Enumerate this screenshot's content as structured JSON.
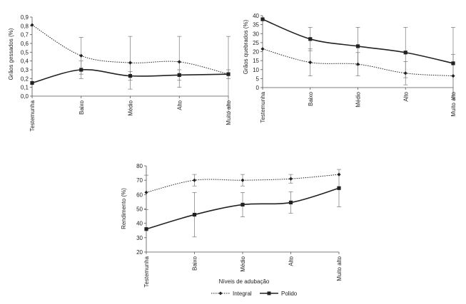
{
  "chart_data": [
    {
      "type": "line",
      "title": "",
      "xlabel": "",
      "ylabel": "Grãos gessados (%)",
      "categories": [
        "Testemunha",
        "Baixo",
        "Médio",
        "Alto",
        "Muito alto"
      ],
      "ylim": [
        0,
        0.9
      ],
      "yticks": [
        0,
        0.1,
        0.2,
        0.3,
        0.4,
        0.5,
        0.6,
        0.7,
        0.8,
        0.9
      ],
      "ytick_labels": [
        "0,0",
        "0,1",
        "0,2",
        "0,3",
        "0,4",
        "0,5",
        "0,6",
        "0,7",
        "0,8",
        "0,9"
      ],
      "grid": false,
      "series": [
        {
          "name": "Integral",
          "style": "dotted",
          "marker": "diamond",
          "color": "#222222",
          "values": [
            0.81,
            0.46,
            0.38,
            0.39,
            0.25
          ],
          "error": [
            0,
            0.21,
            0.3,
            0.29,
            0.43
          ]
        },
        {
          "name": "Polido",
          "style": "solid",
          "marker": "square",
          "color": "#222222",
          "values": [
            0.15,
            0.3,
            0.23,
            0.24,
            0.25
          ],
          "error": [
            0,
            0.1,
            0.05,
            0.06,
            0.05
          ]
        }
      ]
    },
    {
      "type": "line",
      "title": "",
      "xlabel": "",
      "ylabel": "Grãos quebrados (%)",
      "categories": [
        "Testemunha",
        "Baixo",
        "Médio",
        "Alto",
        "Muito alto"
      ],
      "ylim": [
        0,
        40
      ],
      "yticks": [
        0,
        5,
        10,
        15,
        20,
        25,
        30,
        35,
        40
      ],
      "ytick_labels": [
        "0",
        "5",
        "10",
        "15",
        "20",
        "25",
        "30",
        "35",
        "40"
      ],
      "grid": false,
      "series": [
        {
          "name": "Integral",
          "style": "dotted",
          "marker": "diamond",
          "color": "#222222",
          "values": [
            21.5,
            14,
            13,
            8,
            6.5
          ],
          "error": [
            0,
            7.5,
            6.5,
            6.5,
            12
          ]
        },
        {
          "name": "Polido",
          "style": "solid",
          "marker": "square",
          "color": "#222222",
          "values": [
            38,
            27,
            23,
            19.5,
            13.5
          ],
          "error": [
            0,
            6.5,
            10.5,
            14,
            20
          ]
        }
      ]
    },
    {
      "type": "line",
      "title": "",
      "xlabel": "Níveis de adubação",
      "ylabel": "Rendimento (%)",
      "categories": [
        "Testemunha",
        "Baixo",
        "Médio",
        "Alto",
        "Muito alto"
      ],
      "ylim": [
        20,
        80
      ],
      "yticks": [
        20,
        30,
        40,
        50,
        60,
        70,
        80
      ],
      "ytick_labels": [
        "20",
        "30",
        "40",
        "50",
        "60",
        "70",
        "80"
      ],
      "grid": false,
      "legend_position": "bottom",
      "series": [
        {
          "name": "Integral",
          "style": "dotted",
          "marker": "diamond",
          "color": "#222222",
          "values": [
            61.5,
            70,
            70,
            71,
            74
          ],
          "error": [
            12,
            4,
            4,
            3,
            0
          ]
        },
        {
          "name": "Polido",
          "style": "solid",
          "marker": "square",
          "color": "#222222",
          "values": [
            36,
            46,
            53,
            54.5,
            64.5
          ],
          "error": [
            0,
            15.5,
            8.5,
            7.5,
            13
          ]
        }
      ]
    }
  ]
}
